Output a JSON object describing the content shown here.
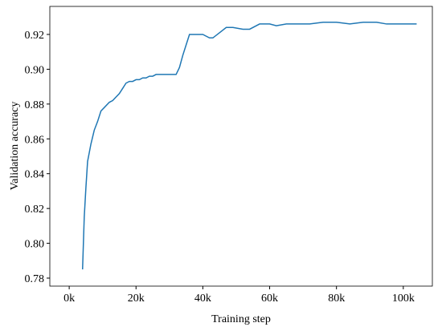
{
  "chart_data": {
    "type": "line",
    "x_label": "Training step",
    "y_label": "Validation accuracy",
    "x": [
      4000,
      4500,
      5000,
      5500,
      6500,
      7500,
      8500,
      9500,
      10500,
      12000,
      13000,
      14000,
      15000,
      16000,
      17000,
      18000,
      19000,
      20000,
      21000,
      22000,
      23000,
      24000,
      25000,
      26000,
      27000,
      28000,
      29000,
      30000,
      31000,
      32000,
      33000,
      34000,
      35000,
      36000,
      38000,
      40000,
      42000,
      43000,
      45000,
      47000,
      49000,
      52000,
      54000,
      57000,
      60000,
      62000,
      65000,
      68000,
      72000,
      76000,
      80000,
      84000,
      88000,
      92000,
      95000,
      100000,
      104000
    ],
    "series": [
      {
        "color": "#1f77b4",
        "values": [
          0.785,
          0.815,
          0.832,
          0.847,
          0.857,
          0.865,
          0.87,
          0.876,
          0.878,
          0.881,
          0.882,
          0.884,
          0.886,
          0.889,
          0.892,
          0.893,
          0.893,
          0.894,
          0.894,
          0.895,
          0.895,
          0.896,
          0.896,
          0.897,
          0.897,
          0.897,
          0.897,
          0.897,
          0.897,
          0.897,
          0.901,
          0.908,
          0.914,
          0.92,
          0.92,
          0.92,
          0.918,
          0.918,
          0.921,
          0.924,
          0.924,
          0.923,
          0.923,
          0.926,
          0.926,
          0.925,
          0.926,
          0.926,
          0.926,
          0.927,
          0.927,
          0.926,
          0.927,
          0.927,
          0.926,
          0.926,
          0.926
        ]
      }
    ],
    "xlim": [
      -5800,
      108700
    ],
    "ylim": [
      0.7754,
      0.9361
    ],
    "xticks": [
      {
        "value": 0,
        "label": "0k"
      },
      {
        "value": 20000,
        "label": "20k"
      },
      {
        "value": 40000,
        "label": "40k"
      },
      {
        "value": 60000,
        "label": "60k"
      },
      {
        "value": 80000,
        "label": "80k"
      },
      {
        "value": 100000,
        "label": "100k"
      }
    ],
    "yticks": [
      {
        "value": 0.78,
        "label": "0.78"
      },
      {
        "value": 0.8,
        "label": "0.80"
      },
      {
        "value": 0.82,
        "label": "0.82"
      },
      {
        "value": 0.84,
        "label": "0.84"
      },
      {
        "value": 0.86,
        "label": "0.86"
      },
      {
        "value": 0.88,
        "label": "0.88"
      },
      {
        "value": 0.9,
        "label": "0.90"
      },
      {
        "value": 0.92,
        "label": "0.92"
      }
    ]
  }
}
